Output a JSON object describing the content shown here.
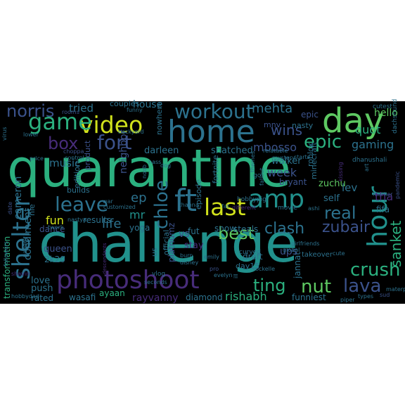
{
  "word_cloud": {
    "background": "#000000",
    "palette": {
      "purple": "#440154",
      "indigo": "#472c7a",
      "blue": "#3b528b",
      "steel": "#2c728e",
      "teal": "#21918c",
      "green": "#28ae80",
      "lime": "#5ec962",
      "yellow": "#d0e11c"
    },
    "words": [
      {
        "text": "quarantine",
        "color": "#2bb07f"
      },
      {
        "text": "challenge",
        "color": "#21918c"
      },
      {
        "text": "home",
        "color": "#2c728e"
      },
      {
        "text": "day",
        "color": "#5ec962"
      },
      {
        "text": "photoshoot",
        "color": "#472c7a"
      },
      {
        "text": "video",
        "color": "#d0e11c"
      },
      {
        "text": "workout",
        "color": "#2c728e"
      },
      {
        "text": "game",
        "color": "#2bb07f"
      },
      {
        "text": "amp",
        "color": "#21918c"
      },
      {
        "text": "last",
        "color": "#d0e11c"
      },
      {
        "text": "ft",
        "color": "#2c728e"
      },
      {
        "text": "hour",
        "color": "#21918c"
      },
      {
        "text": "leave",
        "color": "#2c728e"
      },
      {
        "text": "shelter",
        "color": "#2c728e"
      },
      {
        "text": "box",
        "color": "#472c7a"
      },
      {
        "text": "fort",
        "color": "#3b528b"
      },
      {
        "text": "epic",
        "color": "#2bb07f"
      },
      {
        "text": "chloe",
        "color": "#2c728e"
      },
      {
        "text": "crush",
        "color": "#2bb07f"
      },
      {
        "text": "best",
        "color": "#5ec962"
      },
      {
        "text": "real",
        "color": "#2c728e"
      },
      {
        "text": "lava",
        "color": "#3b528b"
      },
      {
        "text": "zubair",
        "color": "#3b528b"
      },
      {
        "text": "ting",
        "color": "#2bb07f"
      },
      {
        "text": "nut",
        "color": "#5ec962"
      },
      {
        "text": "clash",
        "color": "#2c728e"
      },
      {
        "text": "norris",
        "color": "#3b528b"
      },
      {
        "text": "wins",
        "color": "#3b528b"
      },
      {
        "text": "mehta",
        "color": "#2c728e"
      },
      {
        "text": "gaming",
        "color": "#2c728e"
      },
      {
        "text": "quot",
        "color": "#2bb07f"
      },
      {
        "text": "hello",
        "color": "#5ec962"
      },
      {
        "text": "sanket",
        "color": "#2bb07f"
      },
      {
        "text": "rishabh",
        "color": "#2bb07f"
      },
      {
        "text": "fun",
        "color": "#d0e11c"
      },
      {
        "text": "life",
        "color": "#2c728e"
      },
      {
        "text": "ep",
        "color": "#2c728e"
      },
      {
        "text": "mr",
        "color": "#21918c"
      },
      {
        "text": "week",
        "color": "#3b528b"
      },
      {
        "text": "tried",
        "color": "#2c728e"
      },
      {
        "text": "music",
        "color": "#2c728e"
      },
      {
        "text": "cameron",
        "color": "#2c728e"
      },
      {
        "text": "condiment",
        "color": "#2c728e"
      },
      {
        "text": "transformation",
        "color": "#2bb07f"
      },
      {
        "text": "mbosso",
        "color": "#3b528b"
      },
      {
        "text": "darleen",
        "color": "#2c728e"
      },
      {
        "text": "walker",
        "color": "#2c728e"
      },
      {
        "text": "snatched",
        "color": "#2c728e"
      },
      {
        "text": "zuchu",
        "color": "#5ec962"
      },
      {
        "text": "lev",
        "color": "#2c728e"
      },
      {
        "text": "self",
        "color": "#2c728e"
      },
      {
        "text": "tha",
        "color": "#472c7a"
      },
      {
        "text": "fifa",
        "color": "#2c728e"
      },
      {
        "text": "neighbor",
        "color": "#3b528b"
      },
      {
        "text": "yoga",
        "color": "#2c728e"
      },
      {
        "text": "results",
        "color": "#2c728e"
      },
      {
        "text": "snow",
        "color": "#2c728e"
      },
      {
        "text": "steals",
        "color": "#2c728e"
      },
      {
        "text": "vs",
        "color": "#3b528b"
      },
      {
        "text": "stay",
        "color": "#472c7a"
      },
      {
        "text": "fut",
        "color": "#2c728e"
      },
      {
        "text": "platnumz",
        "color": "#3b528b"
      },
      {
        "text": "dance",
        "color": "#3b528b"
      },
      {
        "text": "queen",
        "color": "#3b528b"
      },
      {
        "text": "2k20",
        "color": "#2c728e"
      },
      {
        "text": "love",
        "color": "#2c728e"
      },
      {
        "text": "push",
        "color": "#2c728e"
      },
      {
        "text": "rated",
        "color": "#2c728e"
      },
      {
        "text": "wasafi",
        "color": "#2c728e"
      },
      {
        "text": "ayaan",
        "color": "#2bb07f"
      },
      {
        "text": "rayvanny",
        "color": "#472c7a"
      },
      {
        "text": "diamond",
        "color": "#2c728e"
      },
      {
        "text": "funniest",
        "color": "#2c728e"
      },
      {
        "text": "jannat",
        "color": "#2c728e"
      },
      {
        "text": "draft",
        "color": "#2c728e"
      },
      {
        "text": "day15",
        "color": "#2c728e"
      },
      {
        "text": "ups",
        "color": "#3b528b"
      },
      {
        "text": "epic",
        "color": "#3b528b"
      },
      {
        "text": "cutest",
        "color": "#2c728e"
      },
      {
        "text": "dachshund",
        "color": "#2c728e"
      },
      {
        "text": "couples",
        "color": "#2c728e"
      },
      {
        "text": "house",
        "color": "#2c728e"
      },
      {
        "text": "mnv",
        "color": "#3b528b"
      },
      {
        "text": "nasty",
        "color": "#2c728e"
      },
      {
        "text": "nowhere",
        "color": "#2c728e"
      },
      {
        "text": "product",
        "color": "#3b528b"
      },
      {
        "text": "edition",
        "color": "#2c728e"
      },
      {
        "text": "builds",
        "color": "#2c728e"
      },
      {
        "text": "us",
        "color": "#2c728e"
      },
      {
        "text": "official",
        "color": "#2c728e"
      },
      {
        "text": "episode",
        "color": "#2c728e"
      },
      {
        "text": "fortnite",
        "color": "#2c728e"
      },
      {
        "text": "minecraft",
        "color": "#2c728e"
      },
      {
        "text": "roblox",
        "color": "#2c728e"
      },
      {
        "text": "bryant",
        "color": "#3b528b"
      },
      {
        "text": "go",
        "color": "#2c728e"
      },
      {
        "text": "movie",
        "color": "#2c728e"
      },
      {
        "text": "hobbypig",
        "color": "#2c728e"
      },
      {
        "text": "different",
        "color": "#472c7a"
      },
      {
        "text": "curved",
        "color": "#2c728e"
      },
      {
        "text": "girlfriends",
        "color": "#2c728e"
      },
      {
        "text": "global",
        "color": "#2c728e"
      },
      {
        "text": "cute",
        "color": "#2c728e"
      },
      {
        "text": "takeover",
        "color": "#2c728e"
      },
      {
        "text": "materpark",
        "color": "#2c728e"
      },
      {
        "text": "sud",
        "color": "#3b528b"
      },
      {
        "text": "types",
        "color": "#2c728e"
      },
      {
        "text": "piper",
        "color": "#2c728e"
      },
      {
        "text": "rockelle",
        "color": "#2c728e"
      },
      {
        "text": "ill",
        "color": "#2c728e"
      },
      {
        "text": "evelyn",
        "color": "#2c728e"
      },
      {
        "text": "pro",
        "color": "#3b528b"
      },
      {
        "text": "burn",
        "color": "#2c728e"
      },
      {
        "text": "emily",
        "color": "#2c728e"
      },
      {
        "text": "disney",
        "color": "#2c728e"
      },
      {
        "text": "vlog",
        "color": "#2c728e"
      },
      {
        "text": "seconds",
        "color": "#2c728e"
      },
      {
        "text": "descendants",
        "color": "#472c7a"
      },
      {
        "text": "shavin",
        "color": "#472c7a"
      },
      {
        "text": "hobbydad",
        "color": "#2c728e"
      },
      {
        "text": "followers",
        "color": "#2c728e"
      },
      {
        "text": "nastya",
        "color": "#2c728e"
      },
      {
        "text": "twerk",
        "color": "#2c728e"
      },
      {
        "text": "pandey",
        "color": "#2c728e"
      },
      {
        "text": "date",
        "color": "#3b528b"
      },
      {
        "text": "war",
        "color": "#2c728e"
      },
      {
        "text": "customized",
        "color": "#2c728e"
      },
      {
        "text": "fat",
        "color": "#2c728e"
      },
      {
        "text": "khanna",
        "color": "#2c728e"
      },
      {
        "text": "nass",
        "color": "#2c728e"
      },
      {
        "text": "dog",
        "color": "#2c728e"
      },
      {
        "text": "noob",
        "color": "#2c728e"
      },
      {
        "text": "control",
        "color": "#2c728e"
      },
      {
        "text": "choppa",
        "color": "#3b528b"
      },
      {
        "text": "price",
        "color": "#2c728e"
      },
      {
        "text": "lower",
        "color": "#2c728e"
      },
      {
        "text": "backyard",
        "color": "#2c728e"
      },
      {
        "text": "rooms",
        "color": "#3b528b"
      },
      {
        "text": "funny",
        "color": "#2c728e"
      },
      {
        "text": "virus",
        "color": "#2c728e"
      },
      {
        "text": "relatable",
        "color": "#2c728e"
      },
      {
        "text": "dhanushali",
        "color": "#2c728e"
      },
      {
        "text": "art",
        "color": "#2c728e"
      },
      {
        "text": "kissing",
        "color": "#472c7a"
      },
      {
        "text": "marker",
        "color": "#3b528b"
      },
      {
        "text": "pandemic",
        "color": "#3b528b"
      },
      {
        "text": "fallout",
        "color": "#2c728e"
      },
      {
        "text": "themes",
        "color": "#2c728e"
      },
      {
        "text": "mystery",
        "color": "#2c728e"
      },
      {
        "text": "starts",
        "color": "#2c728e"
      },
      {
        "text": "ashi",
        "color": "#2c728e"
      },
      {
        "text": "nle",
        "color": "#2c728e"
      },
      {
        "text": "belly",
        "color": "#2c728e"
      },
      {
        "text": "feat",
        "color": "#472c7a"
      }
    ]
  }
}
